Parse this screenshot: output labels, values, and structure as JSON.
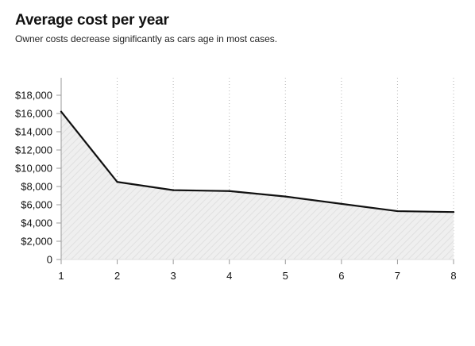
{
  "chart_data": {
    "type": "area",
    "title": "Average cost per year",
    "subtitle": "Owner costs decrease significantly as cars age in most cases.",
    "xlabel": "",
    "ylabel": "",
    "x": [
      1,
      2,
      3,
      4,
      5,
      6,
      7,
      8
    ],
    "series": [
      {
        "values": [
          16200,
          8500,
          7600,
          7500,
          6900,
          6100,
          5300,
          5200
        ]
      }
    ],
    "xlim": [
      1,
      8
    ],
    "ylim": [
      0,
      18000
    ],
    "y_ticks": [
      0,
      2000,
      4000,
      6000,
      8000,
      10000,
      12000,
      14000,
      16000,
      18000
    ],
    "y_tick_labels": [
      "0",
      "$2,000",
      "$4,000",
      "$6,000",
      "$8,000",
      "$10,000",
      "$12,000",
      "$14,000",
      "$16,000",
      "$18,000"
    ],
    "x_tick_labels": [
      "1",
      "2",
      "3",
      "4",
      "5",
      "6",
      "7",
      "8"
    ],
    "grid": "vertical dotted",
    "colors": {
      "line": "#111111",
      "area": "#e9e9e9",
      "grid": "#b5b5b5",
      "axis": "#999999"
    }
  }
}
